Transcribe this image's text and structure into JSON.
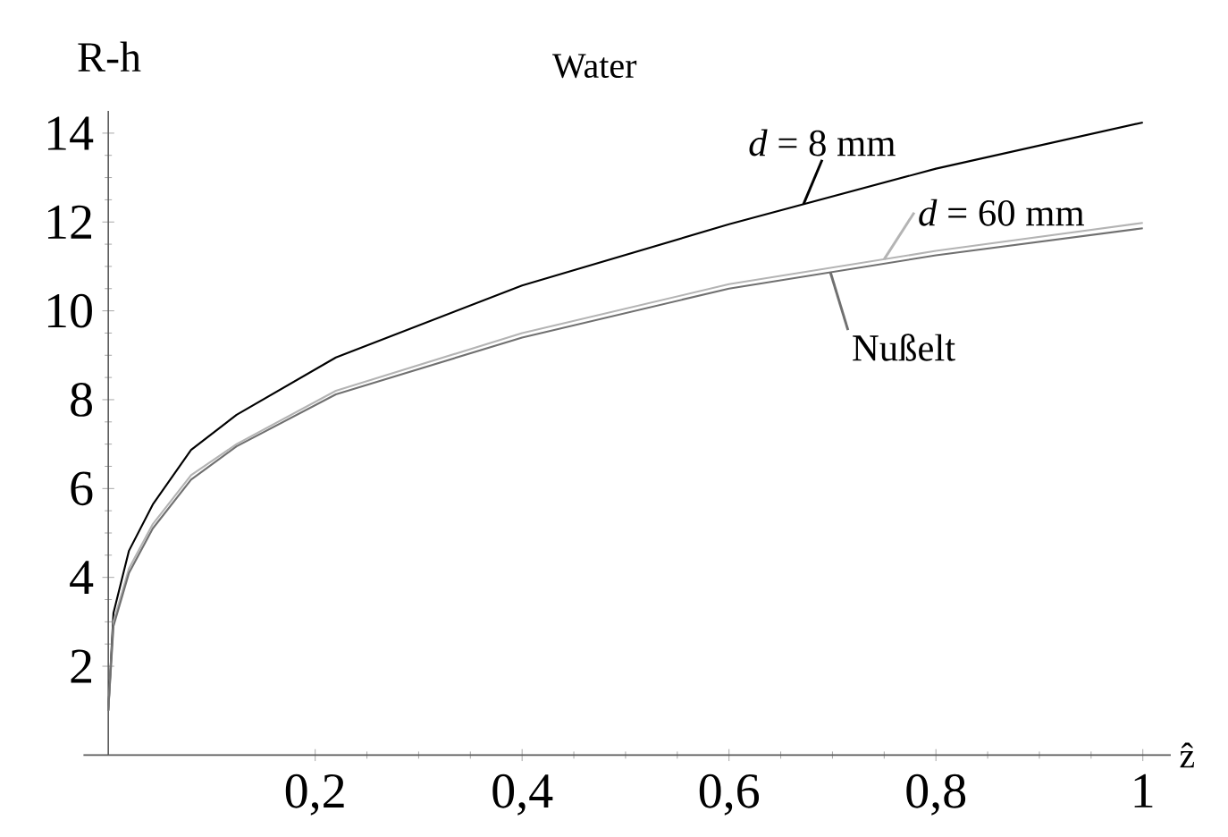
{
  "chart_data": {
    "type": "line",
    "title": "Water",
    "xlabel": "ẑ",
    "ylabel": "R-h",
    "x": [
      0,
      0.005,
      0.02,
      0.043,
      0.08,
      0.124,
      0.22,
      0.4,
      0.6,
      0.8,
      1.0
    ],
    "series": [
      {
        "name": "*d* = 8 mm",
        "color": "#000000",
        "values": [
          1.0,
          3.2,
          4.6,
          5.64,
          6.87,
          7.66,
          8.95,
          10.57,
          11.95,
          13.2,
          14.24
        ]
      },
      {
        "name": "*d* = 60 mm",
        "color": "#b4b4b4",
        "values": [
          1.0,
          3.0,
          4.2,
          5.2,
          6.3,
          7.0,
          8.2,
          9.5,
          10.6,
          11.35,
          11.98
        ]
      },
      {
        "name": "Nußelt",
        "color": "#707070",
        "values": [
          1.0,
          2.9,
          4.1,
          5.1,
          6.2,
          6.95,
          8.12,
          9.4,
          10.5,
          11.25,
          11.86
        ]
      }
    ],
    "xlim": [
      -0.024,
      1.027
    ],
    "ylim": [
      0,
      14.5
    ],
    "xticks": [
      {
        "value": 0.2,
        "label": "0,2"
      },
      {
        "value": 0.4,
        "label": "0,4"
      },
      {
        "value": 0.6,
        "label": "0,6"
      },
      {
        "value": 0.8,
        "label": "0,8"
      },
      {
        "value": 1,
        "label": "1"
      }
    ],
    "yticks": [
      2,
      4,
      6,
      8,
      10,
      12,
      14
    ],
    "marker": "none",
    "line_style": "solid"
  }
}
